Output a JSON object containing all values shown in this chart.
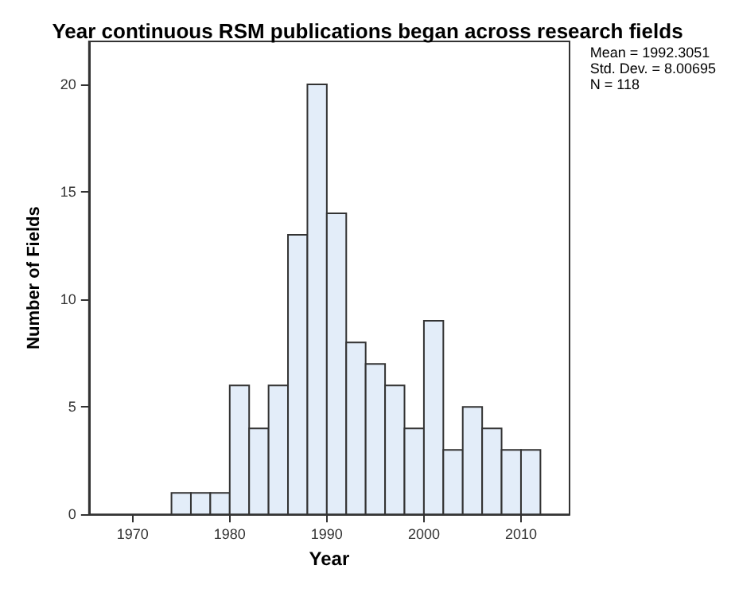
{
  "chart_data": {
    "type": "histogram",
    "title": "Year continuous RSM publications began across research fields",
    "xlabel": "Year",
    "ylabel": "Number of Fields",
    "bins": [
      1974,
      1976,
      1978,
      1980,
      1982,
      1984,
      1986,
      1988,
      1990,
      1992,
      1994,
      1996,
      1998,
      2000,
      2002,
      2004,
      2006,
      2008,
      2010,
      2012
    ],
    "values": [
      1,
      1,
      1,
      6,
      4,
      6,
      13,
      20,
      14,
      8,
      7,
      6,
      4,
      9,
      3,
      5,
      4,
      3,
      3
    ],
    "color": "#e3edf9",
    "xlim": [
      1965.5,
      2015
    ],
    "xticks": [
      1970,
      1980,
      1990,
      2000,
      2010
    ],
    "ylim": [
      0,
      22
    ],
    "yticks": [
      0,
      5,
      10,
      15,
      20
    ],
    "grid": false,
    "annotations": [
      "Mean = 1992.3051",
      "Std. Dev. = 8.00695",
      "N = 118"
    ]
  }
}
